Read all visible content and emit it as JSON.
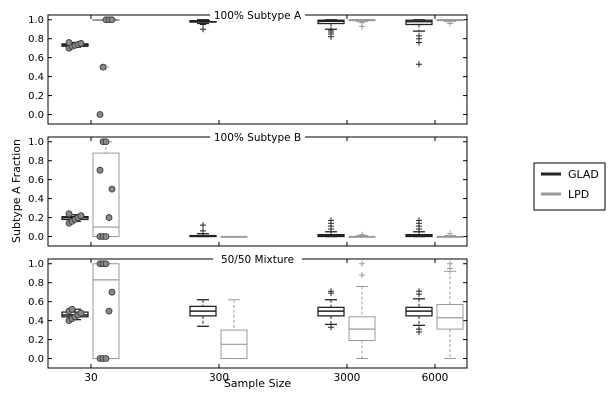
{
  "chart_data": {
    "type": "box",
    "ylabel": "Subtype A Fraction",
    "xlabel": "Sample Size",
    "categories": [
      "30",
      "300",
      "3000",
      "6000"
    ],
    "yticks": [
      "0.0",
      "0.2",
      "0.4",
      "0.6",
      "0.8",
      "1.0"
    ],
    "ylim": [
      -0.1,
      1.05
    ],
    "grid": false,
    "legend_position": "right",
    "legend": [
      {
        "name": "GLAD",
        "color": "#222222"
      },
      {
        "name": "LPD",
        "color": "#999999"
      }
    ],
    "panels": [
      {
        "title": "100% Subtype A",
        "series": [
          {
            "name": "GLAD",
            "boxes": [
              {
                "whislo": 0.71,
                "q1": 0.72,
                "med": 0.735,
                "q3": 0.745,
                "whishi": 0.76,
                "dots": [
                  0.7,
                  0.72,
                  0.73,
                  0.74,
                  0.75,
                  0.76
                ],
                "fliers": []
              },
              {
                "whislo": 0.96,
                "q1": 0.975,
                "med": 0.985,
                "q3": 0.99,
                "whishi": 1.0,
                "dots": [],
                "fliers": [
                  0.9,
                  0.95
                ]
              },
              {
                "whislo": 0.9,
                "q1": 0.96,
                "med": 0.985,
                "q3": 0.995,
                "whishi": 1.0,
                "dots": [],
                "fliers": [
                  0.82,
                  0.85,
                  0.87,
                  0.89
                ]
              },
              {
                "whislo": 0.88,
                "q1": 0.95,
                "med": 0.98,
                "q3": 0.995,
                "whishi": 1.0,
                "dots": [],
                "fliers": [
                  0.53,
                  0.76,
                  0.8,
                  0.83
                ]
              }
            ]
          },
          {
            "name": "LPD",
            "boxes": [
              {
                "whislo": 1.0,
                "q1": 1.0,
                "med": 1.0,
                "q3": 1.0,
                "whishi": 1.0,
                "dots": [
                  0.0,
                  0.5,
                  1.0,
                  1.0,
                  1.0
                ],
                "fliers": [
                  0.5
                ]
              },
              {
                "whislo": 0.99,
                "q1": 0.995,
                "med": 1.0,
                "q3": 1.0,
                "whishi": 1.0,
                "dots": [],
                "fliers": []
              },
              {
                "whislo": 0.98,
                "q1": 0.99,
                "med": 1.0,
                "q3": 1.0,
                "whishi": 1.0,
                "dots": [],
                "fliers": [
                  0.93,
                  0.97
                ]
              },
              {
                "whislo": 0.98,
                "q1": 0.99,
                "med": 1.0,
                "q3": 1.0,
                "whishi": 1.0,
                "dots": [],
                "fliers": [
                  0.96
                ]
              }
            ]
          }
        ]
      },
      {
        "title": "100% Subtype B",
        "series": [
          {
            "name": "GLAD",
            "boxes": [
              {
                "whislo": 0.16,
                "q1": 0.18,
                "med": 0.2,
                "q3": 0.21,
                "whishi": 0.23,
                "dots": [
                  0.14,
                  0.16,
                  0.18,
                  0.2,
                  0.22,
                  0.24
                ],
                "fliers": []
              },
              {
                "whislo": 0.0,
                "q1": 0.0,
                "med": 0.005,
                "q3": 0.01,
                "whishi": 0.03,
                "dots": [],
                "fliers": [
                  0.06,
                  0.12
                ]
              },
              {
                "whislo": 0.0,
                "q1": 0.0,
                "med": 0.01,
                "q3": 0.02,
                "whishi": 0.05,
                "dots": [],
                "fliers": [
                  0.08,
                  0.11,
                  0.14,
                  0.17
                ]
              },
              {
                "whislo": 0.0,
                "q1": 0.0,
                "med": 0.01,
                "q3": 0.02,
                "whishi": 0.05,
                "dots": [],
                "fliers": [
                  0.08,
                  0.11,
                  0.14,
                  0.17
                ]
              }
            ]
          },
          {
            "name": "LPD",
            "boxes": [
              {
                "whislo": 0.0,
                "q1": 0.0,
                "med": 0.1,
                "q3": 0.88,
                "whishi": 1.0,
                "dots": [
                  0.0,
                  0.0,
                  0.0,
                  0.2,
                  0.5,
                  0.7,
                  1.0,
                  1.0
                ],
                "fliers": []
              },
              {
                "whislo": 0.0,
                "q1": 0.0,
                "med": 0.0,
                "q3": 0.0,
                "whishi": 0.0,
                "dots": [],
                "fliers": []
              },
              {
                "whislo": 0.0,
                "q1": 0.0,
                "med": 0.0,
                "q3": 0.0,
                "whishi": 0.01,
                "dots": [],
                "fliers": [
                  0.02
                ]
              },
              {
                "whislo": 0.0,
                "q1": 0.0,
                "med": 0.0,
                "q3": 0.0,
                "whishi": 0.01,
                "dots": [],
                "fliers": [
                  0.03
                ]
              }
            ]
          }
        ]
      },
      {
        "title": "50/50 Mixture",
        "series": [
          {
            "name": "GLAD",
            "boxes": [
              {
                "whislo": 0.41,
                "q1": 0.44,
                "med": 0.46,
                "q3": 0.49,
                "whishi": 0.52,
                "dots": [
                  0.4,
                  0.42,
                  0.44,
                  0.46,
                  0.48,
                  0.5,
                  0.52
                ],
                "fliers": []
              },
              {
                "whislo": 0.34,
                "q1": 0.45,
                "med": 0.5,
                "q3": 0.55,
                "whishi": 0.62,
                "dots": [],
                "fliers": []
              },
              {
                "whislo": 0.36,
                "q1": 0.45,
                "med": 0.5,
                "q3": 0.54,
                "whishi": 0.62,
                "dots": [],
                "fliers": [
                  0.33,
                  0.69,
                  0.71
                ]
              },
              {
                "whislo": 0.35,
                "q1": 0.45,
                "med": 0.5,
                "q3": 0.54,
                "whishi": 0.63,
                "dots": [],
                "fliers": [
                  0.28,
                  0.31,
                  0.68,
                  0.71
                ]
              }
            ]
          },
          {
            "name": "LPD",
            "boxes": [
              {
                "whislo": 0.0,
                "q1": 0.0,
                "med": 0.83,
                "q3": 1.0,
                "whishi": 1.0,
                "dots": [
                  0.0,
                  0.0,
                  0.0,
                  0.5,
                  0.7,
                  1.0,
                  1.0,
                  1.0
                ],
                "fliers": []
              },
              {
                "whislo": 0.0,
                "q1": 0.0,
                "med": 0.15,
                "q3": 0.3,
                "whishi": 0.62,
                "dots": [],
                "fliers": []
              },
              {
                "whislo": 0.0,
                "q1": 0.19,
                "med": 0.31,
                "q3": 0.44,
                "whishi": 0.76,
                "dots": [],
                "fliers": [
                  0.88,
                  1.0
                ]
              },
              {
                "whislo": 0.0,
                "q1": 0.31,
                "med": 0.43,
                "q3": 0.57,
                "whishi": 0.92,
                "dots": [],
                "fliers": [
                  0.95,
                  1.0
                ]
              }
            ]
          }
        ]
      }
    ]
  }
}
